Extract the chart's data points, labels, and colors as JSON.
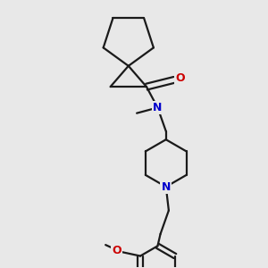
{
  "bg_color": "#e8e8e8",
  "bond_color": "#1a1a1a",
  "N_color": "#0000cc",
  "O_color": "#cc0000",
  "line_width": 1.6,
  "fig_size": [
    3.0,
    3.0
  ],
  "dpi": 100,
  "xlim": [
    0.1,
    0.9
  ],
  "ylim": [
    0.02,
    0.98
  ]
}
